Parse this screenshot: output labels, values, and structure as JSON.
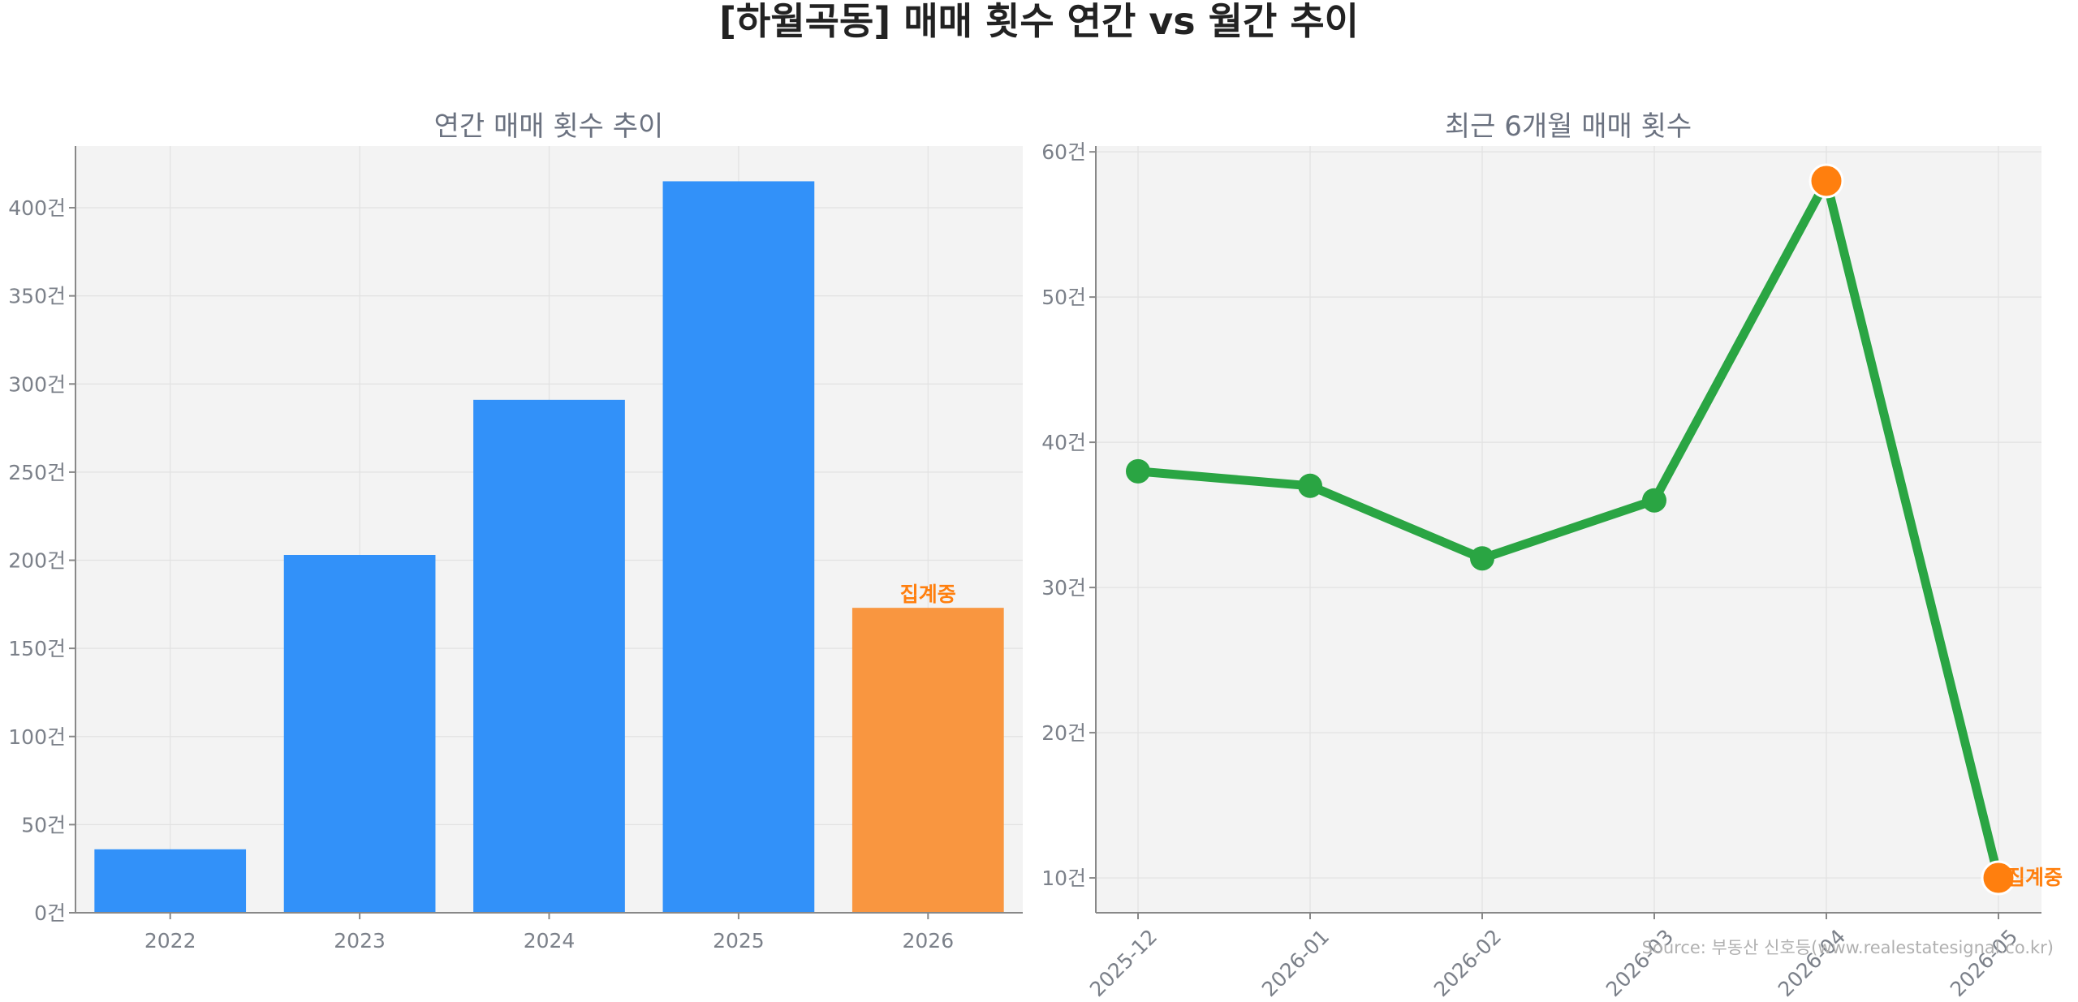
{
  "title": "[하월곡동] 매매 횟수 연간 vs 월간 추이",
  "source": "Source: 부동산 신호등(www.realestatesignal.co.kr)",
  "colors": {
    "bar": "#3291f9",
    "bar_partial": "#f99640",
    "line": "#2aa543",
    "highlight": "#ff7f0e",
    "panel_bg": "#f3f3f3"
  },
  "chart_data": [
    {
      "type": "bar",
      "title": "연간 매매 횟수 추이",
      "categories": [
        "2022",
        "2023",
        "2024",
        "2025",
        "2026"
      ],
      "values": [
        36,
        203,
        291,
        415,
        173
      ],
      "ylim": [
        0,
        435
      ],
      "yticks": [
        0,
        50,
        100,
        150,
        200,
        250,
        300,
        350,
        400
      ],
      "ytick_labels": [
        "0건",
        "50건",
        "100건",
        "150건",
        "200건",
        "250건",
        "300건",
        "350건",
        "400건"
      ],
      "partial_index": 4,
      "annotation": "집계중",
      "grid": true
    },
    {
      "type": "line",
      "title": "최근 6개월 매매 횟수",
      "x": [
        "2025-12",
        "2026-01",
        "2026-02",
        "2026-03",
        "2026-04",
        "2026-05"
      ],
      "values": [
        38,
        37,
        32,
        36,
        58,
        10
      ],
      "ylim": [
        7.6,
        60.4
      ],
      "yticks": [
        10,
        20,
        30,
        40,
        50,
        60
      ],
      "ytick_labels": [
        "10건",
        "20건",
        "30건",
        "40건",
        "50건",
        "60건"
      ],
      "highlight_indices": [
        4,
        5
      ],
      "annotation": "집계중",
      "grid": true
    }
  ]
}
